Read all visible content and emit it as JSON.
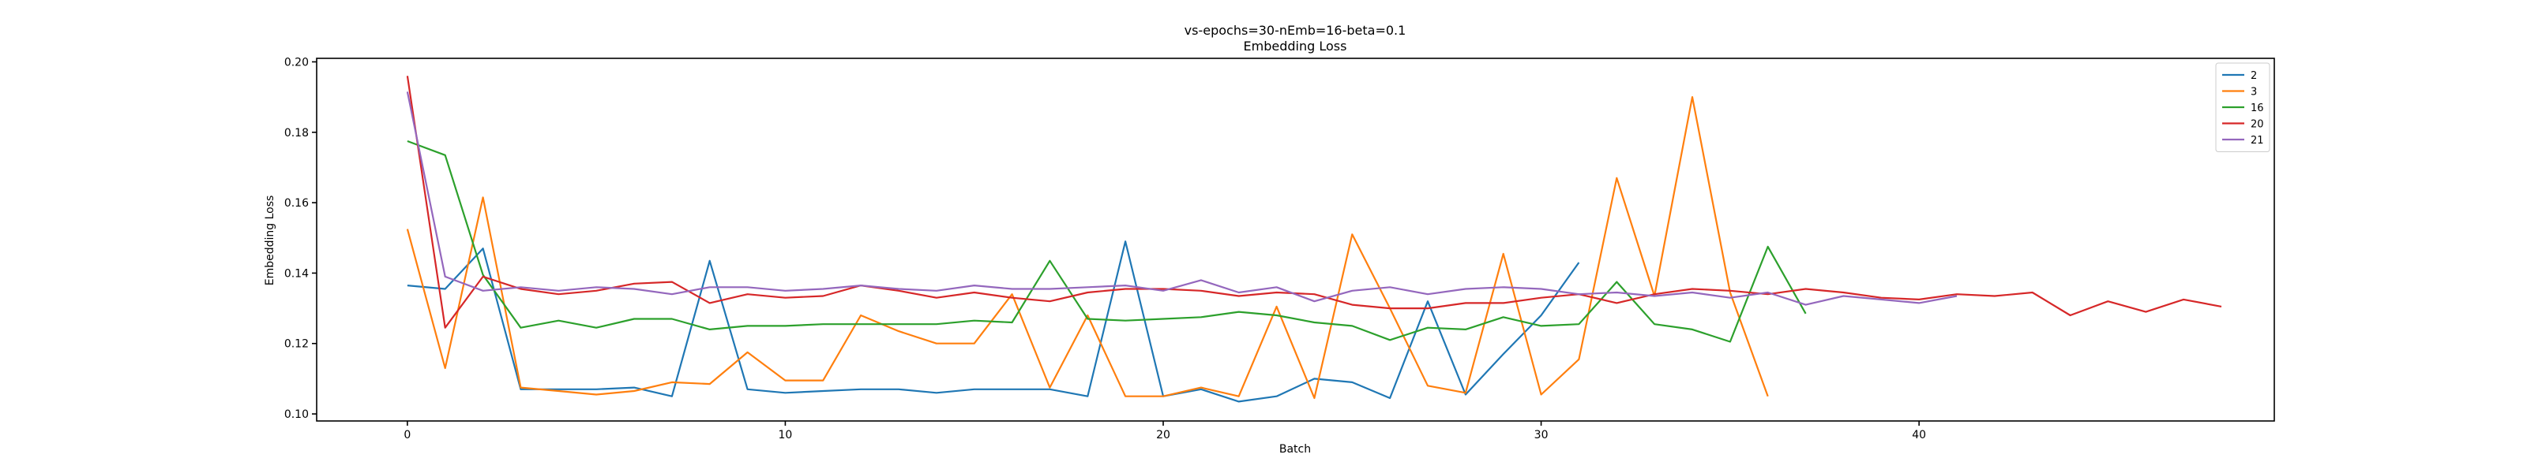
{
  "chart_data": {
    "type": "line",
    "title": "vs-epochs=30-nEmb=16-beta=0.1",
    "subtitle": "Embedding Loss",
    "xlabel": "Batch",
    "ylabel": "Embedding Loss",
    "xlim": [
      -2.4,
      49.4
    ],
    "ylim": [
      0.098,
      0.201
    ],
    "xticks": [
      0,
      10,
      20,
      30,
      40
    ],
    "xtick_labels": [
      "0",
      "10",
      "20",
      "30",
      "40"
    ],
    "yticks": [
      0.1,
      0.12,
      0.14,
      0.16,
      0.18,
      0.2
    ],
    "ytick_labels": [
      "0.10",
      "0.12",
      "0.14",
      "0.16",
      "0.18",
      "0.20"
    ],
    "grid": false,
    "legend_position": "top-right",
    "series": [
      {
        "name": "2",
        "color": "#1f77b4",
        "values": [
          0.1365,
          0.1355,
          0.147,
          0.107,
          0.107,
          0.107,
          0.1075,
          0.105,
          0.1435,
          0.107,
          0.106,
          0.1065,
          0.107,
          0.107,
          0.106,
          0.107,
          0.107,
          0.107,
          0.105,
          0.149,
          0.105,
          0.107,
          0.1035,
          0.105,
          0.11,
          0.109,
          0.1045,
          0.132,
          0.1055,
          0.117,
          0.128,
          0.143
        ]
      },
      {
        "name": "3",
        "color": "#ff7f0e",
        "values": [
          0.1525,
          0.113,
          0.1615,
          0.1075,
          0.1065,
          0.1055,
          0.1065,
          0.109,
          0.1085,
          0.1175,
          0.1095,
          0.1095,
          0.128,
          0.1235,
          0.12,
          0.12,
          0.134,
          0.1075,
          0.128,
          0.105,
          0.105,
          0.1075,
          0.105,
          0.1305,
          0.1045,
          0.151,
          0.13,
          0.108,
          0.106,
          0.1455,
          0.1055,
          0.1155,
          0.167,
          0.1335,
          0.19,
          0.1345,
          0.105
        ]
      },
      {
        "name": "16",
        "color": "#2ca02c",
        "values": [
          0.1775,
          0.1735,
          0.1395,
          0.1245,
          0.1265,
          0.1245,
          0.127,
          0.127,
          0.124,
          0.125,
          0.125,
          0.1255,
          0.1255,
          0.1255,
          0.1255,
          0.1265,
          0.126,
          0.1435,
          0.127,
          0.1265,
          0.127,
          0.1275,
          0.129,
          0.128,
          0.126,
          0.125,
          0.121,
          0.1245,
          0.124,
          0.1275,
          0.125,
          0.1255,
          0.1375,
          0.1255,
          0.124,
          0.1205,
          0.1475,
          0.1285
        ]
      },
      {
        "name": "20",
        "color": "#d62728",
        "values": [
          0.196,
          0.1245,
          0.139,
          0.1355,
          0.134,
          0.135,
          0.137,
          0.1375,
          0.1315,
          0.134,
          0.133,
          0.1335,
          0.1365,
          0.135,
          0.133,
          0.1345,
          0.133,
          0.132,
          0.1345,
          0.1355,
          0.1355,
          0.135,
          0.1335,
          0.1345,
          0.134,
          0.131,
          0.13,
          0.13,
          0.1315,
          0.1315,
          0.133,
          0.134,
          0.1315,
          0.134,
          0.1355,
          0.135,
          0.134,
          0.1355,
          0.1345,
          0.133,
          0.1325,
          0.134,
          0.1335,
          0.1345,
          0.128,
          0.132,
          0.129,
          0.1325,
          0.1305
        ]
      },
      {
        "name": "21",
        "color": "#9467bd",
        "values": [
          0.1915,
          0.139,
          0.135,
          0.136,
          0.135,
          0.136,
          0.1355,
          0.134,
          0.136,
          0.136,
          0.135,
          0.1355,
          0.1365,
          0.1355,
          0.135,
          0.1365,
          0.1355,
          0.1355,
          0.136,
          0.1365,
          0.135,
          0.138,
          0.1345,
          0.136,
          0.132,
          0.135,
          0.136,
          0.134,
          0.1355,
          0.136,
          0.1355,
          0.134,
          0.1345,
          0.1335,
          0.1345,
          0.133,
          0.1345,
          0.131,
          0.1335,
          0.1325,
          0.1315,
          0.1335
        ]
      }
    ]
  }
}
